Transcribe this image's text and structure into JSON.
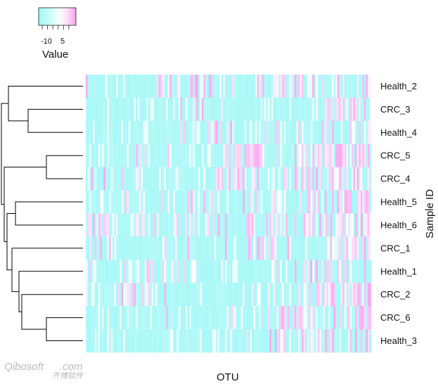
{
  "chart_data": {
    "type": "heatmap",
    "title": "",
    "xlabel": "OTU",
    "ylabel": "Sample ID",
    "rows": [
      "Health_2",
      "CRC_3",
      "Health_4",
      "CRC_5",
      "CRC_4",
      "Health_5",
      "Health_6",
      "CRC_1",
      "Health_1",
      "CRC_2",
      "CRC_6",
      "Health_3"
    ],
    "column_count": 160,
    "color_scale": {
      "title": "Value",
      "ticks": [
        "-10",
        "5"
      ],
      "tick_values": [
        -10,
        5
      ],
      "range": [
        -12,
        9
      ],
      "low_color": "#9ff7f6",
      "mid_color": "#ffffff",
      "high_color": "#f7a6ef"
    },
    "dendrogram": "rows clustered; tree drawn on left",
    "watermark": {
      "main": "Qibosoft",
      "dot_com": ".com",
      "sub": "齐博软件"
    }
  }
}
